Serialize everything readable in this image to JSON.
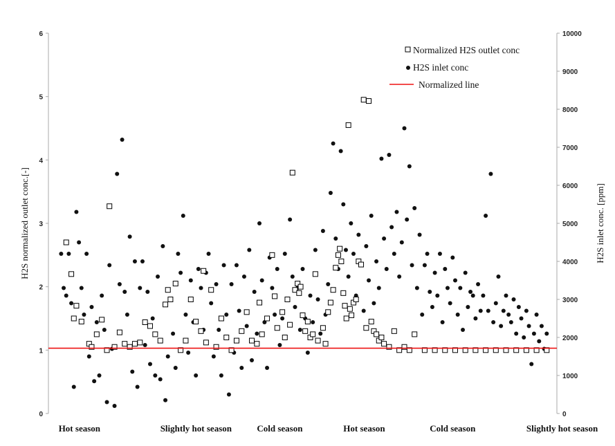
{
  "chart_data": {
    "type": "scatter",
    "title": "",
    "ylabel": "H2S normalized  outlet conc.[-]",
    "y2label": "H2S inlet conc. [ppm]",
    "ylim": [
      0,
      6
    ],
    "y2lim": [
      0,
      10000
    ],
    "yticks": [
      "0",
      "1",
      "2",
      "3",
      "4",
      "5",
      "6"
    ],
    "y2ticks": [
      "0",
      "1000",
      "2000",
      "3000",
      "4000",
      "5000",
      "6000",
      "7000",
      "8000",
      "9000",
      "10000"
    ],
    "xlim": [
      0,
      100
    ],
    "season_labels": [
      {
        "label": "Hot season",
        "x": 2
      },
      {
        "label": "Slightly hot  season",
        "x": 22
      },
      {
        "label": "Cold season",
        "x": 41
      },
      {
        "label": "Hot season",
        "x": 58
      },
      {
        "label": "Cold season",
        "x": 75
      },
      {
        "label": "Slightly hot season",
        "x": 94
      }
    ],
    "legend_position": "top-right",
    "normalized_line_value": 1.03,
    "series": [
      {
        "name": "Normalized H2S outlet conc",
        "marker": "open-square",
        "axis": "left",
        "color": "#000000",
        "points": [
          [
            3.5,
            2.7
          ],
          [
            4.5,
            2.2
          ],
          [
            5,
            1.5
          ],
          [
            5.5,
            1.7
          ],
          [
            6.5,
            1.45
          ],
          [
            8,
            1.1
          ],
          [
            8.5,
            1.05
          ],
          [
            9.5,
            1.25
          ],
          [
            10.5,
            1.48
          ],
          [
            11.5,
            1.0
          ],
          [
            12,
            3.27
          ],
          [
            13,
            1.05
          ],
          [
            14,
            1.28
          ],
          [
            15,
            1.1
          ],
          [
            16,
            1.05
          ],
          [
            17,
            1.1
          ],
          [
            18,
            1.12
          ],
          [
            19,
            1.44
          ],
          [
            20,
            1.38
          ],
          [
            21,
            1.25
          ],
          [
            22,
            1.15
          ],
          [
            23,
            1.72
          ],
          [
            23.5,
            1.95
          ],
          [
            24,
            1.8
          ],
          [
            25,
            2.05
          ],
          [
            26,
            1.0
          ],
          [
            27,
            1.15
          ],
          [
            28,
            1.8
          ],
          [
            29,
            1.45
          ],
          [
            30,
            1.3
          ],
          [
            30.5,
            2.25
          ],
          [
            31,
            1.12
          ],
          [
            32,
            1.95
          ],
          [
            33,
            1.05
          ],
          [
            34,
            1.5
          ],
          [
            35,
            1.2
          ],
          [
            36,
            1.0
          ],
          [
            37,
            1.15
          ],
          [
            38,
            1.3
          ],
          [
            39,
            1.6
          ],
          [
            40,
            1.15
          ],
          [
            41,
            1.1
          ],
          [
            41.5,
            1.75
          ],
          [
            42,
            1.25
          ],
          [
            43,
            1.5
          ],
          [
            44,
            2.5
          ],
          [
            44.5,
            1.85
          ],
          [
            45,
            1.35
          ],
          [
            46,
            1.6
          ],
          [
            46.5,
            1.2
          ],
          [
            47,
            1.8
          ],
          [
            47.5,
            1.4
          ],
          [
            48,
            3.8
          ],
          [
            48.5,
            1.95
          ],
          [
            49,
            2.05
          ],
          [
            49.3,
            1.9
          ],
          [
            49.6,
            2.0
          ],
          [
            50,
            1.55
          ],
          [
            50.5,
            1.3
          ],
          [
            51,
            1.45
          ],
          [
            51.5,
            1.2
          ],
          [
            52,
            1.25
          ],
          [
            52.5,
            2.2
          ],
          [
            53,
            1.15
          ],
          [
            54,
            1.35
          ],
          [
            54.5,
            1.1
          ],
          [
            55,
            1.6
          ],
          [
            55.5,
            1.75
          ],
          [
            56,
            1.95
          ],
          [
            56.5,
            2.3
          ],
          [
            57,
            2.5
          ],
          [
            57.3,
            2.6
          ],
          [
            57.6,
            2.4
          ],
          [
            58,
            1.9
          ],
          [
            58.3,
            1.7
          ],
          [
            58.6,
            1.5
          ],
          [
            59,
            4.55
          ],
          [
            59.3,
            1.65
          ],
          [
            59.6,
            1.55
          ],
          [
            60,
            1.75
          ],
          [
            60.5,
            1.8
          ],
          [
            61,
            2.4
          ],
          [
            61.5,
            2.35
          ],
          [
            62,
            4.95
          ],
          [
            62.5,
            1.35
          ],
          [
            63,
            4.93
          ],
          [
            63.5,
            1.45
          ],
          [
            64,
            1.3
          ],
          [
            64.5,
            1.25
          ],
          [
            65,
            1.15
          ],
          [
            65.5,
            1.2
          ],
          [
            66,
            1.1
          ],
          [
            67,
            1.05
          ],
          [
            68,
            1.3
          ],
          [
            69,
            1.0
          ],
          [
            70,
            1.05
          ],
          [
            71,
            1.0
          ],
          [
            72,
            1.25
          ],
          [
            74,
            1.0
          ],
          [
            76,
            1.0
          ],
          [
            78,
            1.0
          ],
          [
            80,
            1.0
          ],
          [
            82,
            1.0
          ],
          [
            84,
            1.0
          ],
          [
            86,
            1.0
          ],
          [
            88,
            1.0
          ],
          [
            90,
            1.0
          ],
          [
            92,
            1.0
          ],
          [
            94,
            1.0
          ],
          [
            96,
            1.0
          ],
          [
            98,
            1.0
          ]
        ]
      },
      {
        "name": "H2S inlet conc",
        "marker": "filled-circle",
        "axis": "right",
        "color": "#111111",
        "points": [
          [
            2.5,
            4200
          ],
          [
            3,
            3300
          ],
          [
            3.5,
            3100
          ],
          [
            4,
            4200
          ],
          [
            4.5,
            2900
          ],
          [
            5,
            700
          ],
          [
            5.5,
            5300
          ],
          [
            6,
            4500
          ],
          [
            6.5,
            3300
          ],
          [
            7,
            2600
          ],
          [
            7.5,
            4200
          ],
          [
            8,
            1500
          ],
          [
            8.5,
            2800
          ],
          [
            9,
            850
          ],
          [
            9.5,
            2400
          ],
          [
            10,
            1000
          ],
          [
            10.5,
            3100
          ],
          [
            11,
            2200
          ],
          [
            11.5,
            300
          ],
          [
            12,
            3900
          ],
          [
            12.5,
            1700
          ],
          [
            13,
            200
          ],
          [
            13.5,
            6300
          ],
          [
            14,
            3400
          ],
          [
            14.5,
            7200
          ],
          [
            15,
            3200
          ],
          [
            15.5,
            2600
          ],
          [
            16,
            4650
          ],
          [
            16.5,
            1100
          ],
          [
            17,
            4000
          ],
          [
            17.5,
            700
          ],
          [
            18,
            3300
          ],
          [
            18.5,
            4000
          ],
          [
            19,
            1800
          ],
          [
            19.5,
            3200
          ],
          [
            20,
            1300
          ],
          [
            20.5,
            2500
          ],
          [
            21,
            1000
          ],
          [
            21.5,
            3600
          ],
          [
            22,
            900
          ],
          [
            22.5,
            4400
          ],
          [
            23,
            350
          ],
          [
            23.5,
            1500
          ],
          [
            24,
            3000
          ],
          [
            24.5,
            2100
          ],
          [
            25,
            1200
          ],
          [
            25.5,
            4200
          ],
          [
            26,
            3700
          ],
          [
            26.5,
            5200
          ],
          [
            27,
            2600
          ],
          [
            27.5,
            1600
          ],
          [
            28,
            3500
          ],
          [
            28.5,
            2400
          ],
          [
            29,
            1000
          ],
          [
            29.5,
            3800
          ],
          [
            30,
            3300
          ],
          [
            30.5,
            2200
          ],
          [
            31,
            3700
          ],
          [
            31.5,
            4200
          ],
          [
            32,
            2900
          ],
          [
            32.5,
            1500
          ],
          [
            33,
            3400
          ],
          [
            33.5,
            2200
          ],
          [
            34,
            1000
          ],
          [
            34.5,
            3900
          ],
          [
            35,
            2600
          ],
          [
            35.5,
            500
          ],
          [
            36,
            3400
          ],
          [
            36.5,
            1600
          ],
          [
            37,
            3900
          ],
          [
            37.5,
            2700
          ],
          [
            38,
            1200
          ],
          [
            38.5,
            3600
          ],
          [
            39,
            2300
          ],
          [
            39.5,
            4300
          ],
          [
            40,
            1400
          ],
          [
            40.5,
            3200
          ],
          [
            41,
            2100
          ],
          [
            41.5,
            5000
          ],
          [
            42,
            3500
          ],
          [
            42.5,
            2400
          ],
          [
            43,
            1200
          ],
          [
            43.5,
            4100
          ],
          [
            44,
            3300
          ],
          [
            44.5,
            2600
          ],
          [
            45,
            3800
          ],
          [
            45.5,
            1800
          ],
          [
            46,
            2500
          ],
          [
            46.5,
            4200
          ],
          [
            47,
            3000
          ],
          [
            47.5,
            5100
          ],
          [
            48,
            3600
          ],
          [
            48.5,
            2800
          ],
          [
            49,
            3300
          ],
          [
            49.5,
            2200
          ],
          [
            50,
            3800
          ],
          [
            50.5,
            2500
          ],
          [
            51,
            1600
          ],
          [
            51.5,
            3100
          ],
          [
            52,
            2400
          ],
          [
            52.5,
            4300
          ],
          [
            53,
            3000
          ],
          [
            53.5,
            2100
          ],
          [
            54,
            4800
          ],
          [
            54.5,
            2600
          ],
          [
            55,
            3400
          ],
          [
            55.5,
            5800
          ],
          [
            56,
            7100
          ],
          [
            56.5,
            4600
          ],
          [
            57,
            3800
          ],
          [
            57.5,
            6900
          ],
          [
            58,
            5500
          ],
          [
            58.5,
            4300
          ],
          [
            59,
            3600
          ],
          [
            59.5,
            5000
          ],
          [
            60,
            4200
          ],
          [
            60.5,
            3100
          ],
          [
            61,
            4700
          ],
          [
            61.5,
            3900
          ],
          [
            62,
            2700
          ],
          [
            62.5,
            4400
          ],
          [
            63,
            3500
          ],
          [
            63.5,
            5200
          ],
          [
            64,
            2900
          ],
          [
            64.5,
            4000
          ],
          [
            65,
            3300
          ],
          [
            65.5,
            6700
          ],
          [
            66,
            4600
          ],
          [
            66.5,
            3800
          ],
          [
            67,
            6800
          ],
          [
            67.5,
            4900
          ],
          [
            68,
            4200
          ],
          [
            68.5,
            5300
          ],
          [
            69,
            3600
          ],
          [
            69.5,
            4500
          ],
          [
            70,
            7500
          ],
          [
            70.5,
            5100
          ],
          [
            71,
            6500
          ],
          [
            71.5,
            3900
          ],
          [
            72,
            5400
          ],
          [
            72.5,
            3300
          ],
          [
            73,
            4700
          ],
          [
            73.5,
            2600
          ],
          [
            74,
            3900
          ],
          [
            74.5,
            4200
          ],
          [
            75,
            3200
          ],
          [
            75.5,
            2800
          ],
          [
            76,
            3700
          ],
          [
            76.5,
            3100
          ],
          [
            77,
            4200
          ],
          [
            77.5,
            2400
          ],
          [
            78,
            3800
          ],
          [
            78.5,
            3300
          ],
          [
            79,
            2900
          ],
          [
            79.5,
            4100
          ],
          [
            80,
            3500
          ],
          [
            80.5,
            2600
          ],
          [
            81,
            3300
          ],
          [
            81.5,
            2200
          ],
          [
            82,
            3700
          ],
          [
            82.5,
            2800
          ],
          [
            83,
            3200
          ],
          [
            83.5,
            3100
          ],
          [
            84,
            2500
          ],
          [
            84.5,
            3400
          ],
          [
            85,
            2700
          ],
          [
            85.5,
            3100
          ],
          [
            86,
            5200
          ],
          [
            86.5,
            2700
          ],
          [
            87,
            6300
          ],
          [
            87.5,
            2400
          ],
          [
            88,
            2900
          ],
          [
            88.5,
            3600
          ],
          [
            89,
            2300
          ],
          [
            89.5,
            2700
          ],
          [
            90,
            3100
          ],
          [
            90.5,
            2600
          ],
          [
            91,
            2400
          ],
          [
            91.5,
            3000
          ],
          [
            92,
            2100
          ],
          [
            92.5,
            2800
          ],
          [
            93,
            2500
          ],
          [
            93.5,
            2000
          ],
          [
            94,
            2700
          ],
          [
            94.5,
            2300
          ],
          [
            95,
            1300
          ],
          [
            95.5,
            2100
          ],
          [
            96,
            2600
          ],
          [
            96.5,
            1900
          ],
          [
            97,
            2300
          ],
          [
            97.5,
            1700
          ],
          [
            98,
            2100
          ]
        ]
      },
      {
        "name": "Normalized line",
        "marker": "line",
        "axis": "left",
        "color": "#ee1111"
      }
    ]
  }
}
